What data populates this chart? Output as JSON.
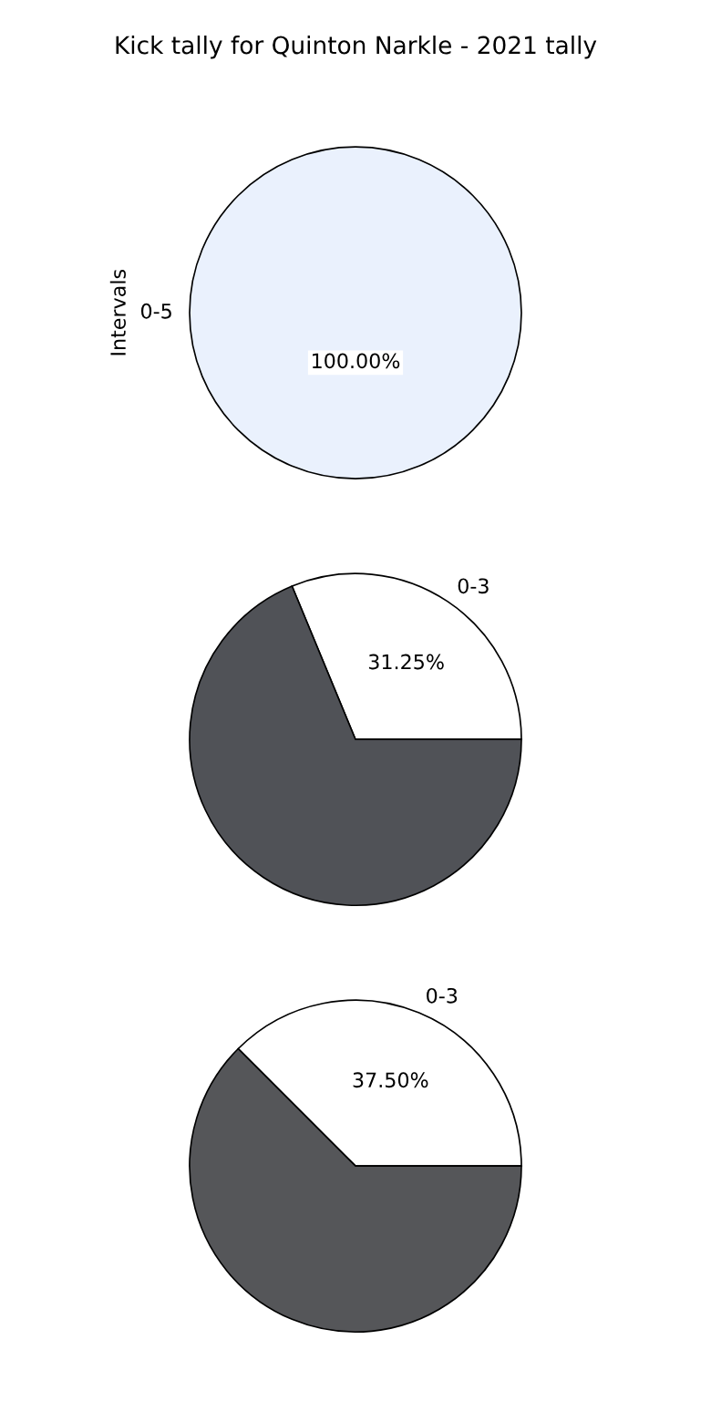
{
  "chart_data": [
    {
      "type": "pie",
      "title": "Kick tally for Quinton Narkle - 2021 tally",
      "ylabel": "Intervals",
      "categories": [
        "0-5"
      ],
      "values": [
        100
      ],
      "colors": [
        "#eaf1fd"
      ],
      "value_labels": [
        "100.00%"
      ]
    },
    {
      "type": "pie",
      "categories": [
        "0-3",
        null
      ],
      "values": [
        31.25,
        68.75
      ],
      "colors": [
        "#ffffff",
        "#505257"
      ],
      "value_labels": [
        "31.25%",
        null
      ]
    },
    {
      "type": "pie",
      "categories": [
        "0-3",
        null
      ],
      "values": [
        37.5,
        62.5
      ],
      "colors": [
        "#ffffff",
        "#555659"
      ],
      "value_labels": [
        "37.50%",
        null
      ]
    }
  ]
}
